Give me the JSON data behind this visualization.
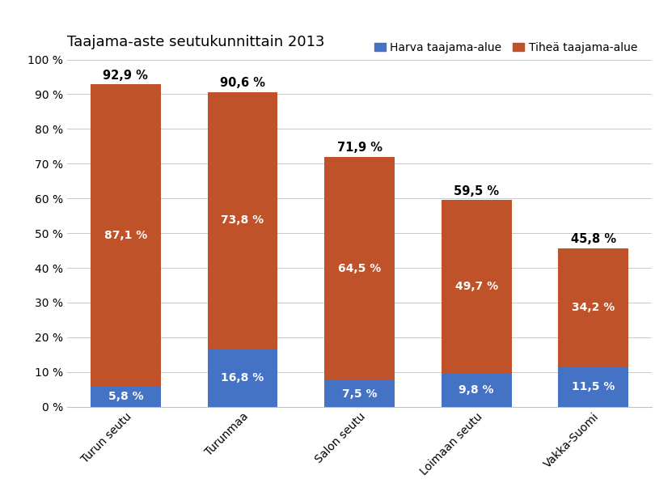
{
  "title": "Taajama-aste seutukunnittain 2013",
  "categories": [
    "Turun seutu",
    "Turunmaa",
    "Salon seutu",
    "Loimaan seutu",
    "Vakka-Suomi"
  ],
  "harva_values": [
    5.8,
    16.8,
    7.5,
    9.8,
    11.5
  ],
  "tihea_values": [
    87.1,
    73.8,
    64.5,
    49.7,
    34.2
  ],
  "total_labels": [
    "92,9 %",
    "90,6 %",
    "71,9 %",
    "59,5 %",
    "45,8 %"
  ],
  "harva_labels": [
    "5,8 %",
    "16,8 %",
    "7,5 %",
    "9,8 %",
    "11,5 %"
  ],
  "tihea_labels": [
    "87,1 %",
    "73,8 %",
    "64,5 %",
    "49,7 %",
    "34,2 %"
  ],
  "harva_color": "#4472C4",
  "tihea_color": "#C0522A",
  "legend_harva": "Harva taajama-alue",
  "legend_tihea": "Tiheä taajama-alue",
  "yticks": [
    0,
    10,
    20,
    30,
    40,
    50,
    60,
    70,
    80,
    90,
    100
  ],
  "ytick_labels": [
    "0 %",
    "10 %",
    "20 %",
    "30 %",
    "40 %",
    "50 %",
    "60 %",
    "70 %",
    "80 %",
    "90 %",
    "100 %"
  ],
  "bar_width": 0.6,
  "background_color": "#ffffff",
  "title_fontsize": 13,
  "label_fontsize": 10,
  "tick_fontsize": 10,
  "legend_fontsize": 10,
  "total_fontsize": 10.5
}
